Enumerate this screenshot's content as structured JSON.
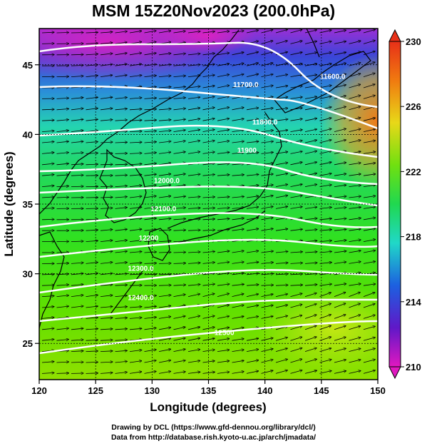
{
  "title": "MSM 15Z20Nov2023 (200.0hPa)",
  "credits": {
    "line1": "Drawing by DCL (https://www.gfd-dennou.org/library/dcl/)",
    "line2": "Data from http://database.rish.kyoto-u.ac.jp/arch/jmadata/"
  },
  "map": {
    "x_axis": {
      "label": "Longitude (degrees)",
      "range": [
        120,
        150
      ],
      "ticks": [
        120,
        125,
        130,
        135,
        140,
        145,
        150
      ]
    },
    "y_axis": {
      "label": "Latitude  (degrees)",
      "range": [
        22.4,
        47.6
      ],
      "ticks": [
        25,
        30,
        35,
        40,
        45
      ]
    },
    "contours": [
      {
        "label": "11600.0",
        "lon": 146.0,
        "lat": 44.0
      },
      {
        "label": "11700.0",
        "lon": 138.3,
        "lat": 43.4
      },
      {
        "label": "11800.0",
        "lon": 140.0,
        "lat": 40.7
      },
      {
        "label": "11900",
        "lon": 138.4,
        "lat": 38.7
      },
      {
        "label": "12000.0",
        "lon": 131.3,
        "lat": 36.5
      },
      {
        "label": "12100.0",
        "lon": 131.0,
        "lat": 34.5
      },
      {
        "label": "12200",
        "lon": 129.7,
        "lat": 32.4
      },
      {
        "label": "12300.0",
        "lon": 129.0,
        "lat": 30.2
      },
      {
        "label": "12400.0",
        "lon": 129.0,
        "lat": 28.1
      },
      {
        "label": "12500",
        "lon": 136.4,
        "lat": 25.6
      }
    ]
  },
  "colorbar": {
    "ticks": [
      230,
      226,
      222,
      218,
      214,
      210
    ]
  }
}
